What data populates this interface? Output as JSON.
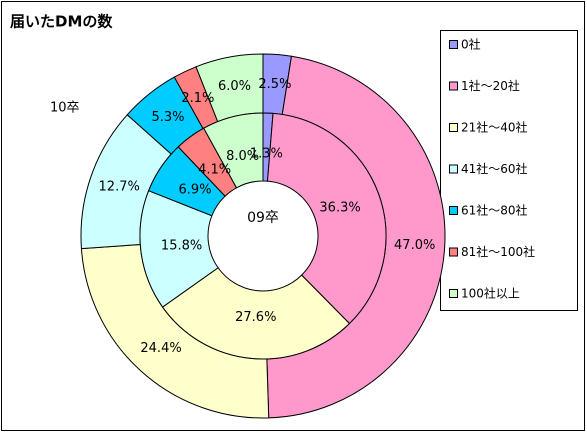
{
  "chart_data": {
    "type": "donut",
    "title": "届いたDMの数",
    "categories": [
      "0社",
      "1社～20社",
      "21社～40社",
      "41社～60社",
      "61社～80社",
      "81社～100社",
      "100社以上"
    ],
    "colors": [
      "#9999ff",
      "#ff99cc",
      "#ffffcc",
      "#ccffff",
      "#00ccff",
      "#ff8080",
      "#ccffcc"
    ],
    "series": [
      {
        "name": "10卒",
        "values": [
          2.5,
          47.0,
          24.4,
          12.7,
          5.3,
          2.1,
          6.0
        ],
        "value_labels": [
          "2.5%",
          "47.0%",
          "24.4%",
          "12.7%",
          "5.3%",
          "2.1%",
          "6.0%"
        ]
      },
      {
        "name": "09卒",
        "values": [
          1.3,
          36.3,
          27.6,
          15.8,
          6.9,
          4.1,
          8.0
        ],
        "value_labels": [
          "1.3%",
          "36.3%",
          "27.6%",
          "15.8%",
          "6.9%",
          "4.1%",
          "8.0%"
        ]
      }
    ],
    "legend": "right"
  }
}
